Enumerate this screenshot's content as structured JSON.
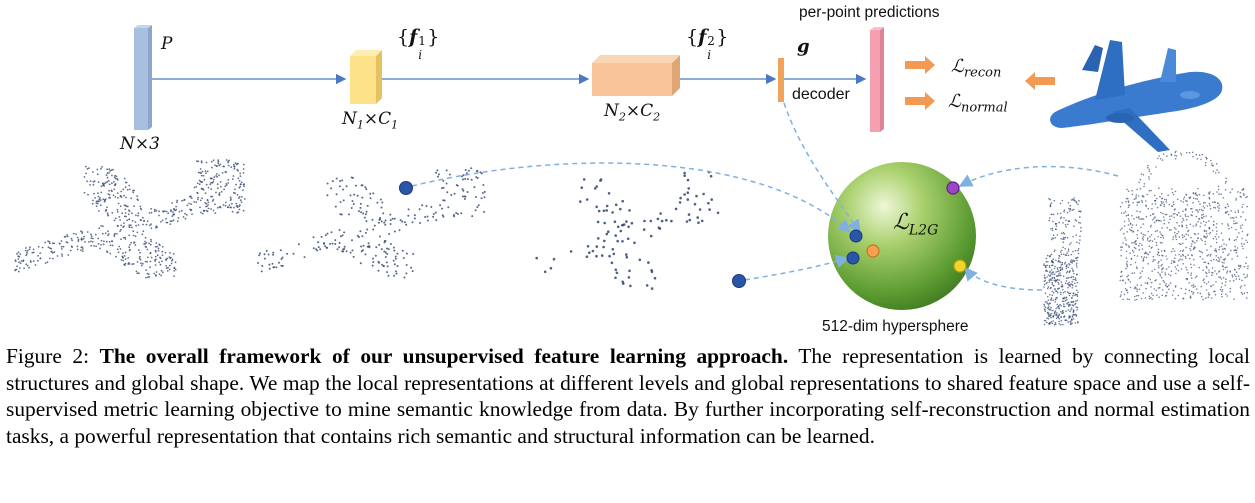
{
  "figure": {
    "labels": {
      "input_P": "P",
      "input_size": "N×3",
      "feature1": "{f",
      "feature1_sup": "1",
      "feature1_sub": "i",
      "feature1_close": "}",
      "size1_N": "N",
      "size1_Nsub": "1",
      "size1_x": "×",
      "size1_C": "C",
      "size1_Csub": "1",
      "feature2": "{f",
      "feature2_sup": "2",
      "feature2_sub": "i",
      "feature2_close": "}",
      "size2_N": "N",
      "size2_Nsub": "2",
      "size2_x": "×",
      "size2_C": "C",
      "size2_Csub": "2",
      "global_g": "g",
      "decoder": "decoder",
      "predictions": "per-point predictions",
      "loss_recon_L": "ℒ",
      "loss_recon_sub": "recon",
      "loss_normal_L": "ℒ",
      "loss_normal_sub": "normal",
      "loss_l2g_L": "ℒ",
      "loss_l2g_sub": "L2G",
      "hypersphere": "512-dim hypersphere"
    },
    "colors": {
      "input_bar": "#a9bfe0",
      "feature1_box": "#fde28a",
      "feature2_box": "#f9c49a",
      "g_bar": "#f0a35a",
      "prediction_bar": "#f5a0b0",
      "arrow_orange": "#f29a54",
      "flow_line": "#4a78c2",
      "dashed_line": "#7fb0e0",
      "sphere_light": "#cfe7a5",
      "sphere_dark": "#4a8a28",
      "airplane": "#2f6fc2",
      "dot_blue": "#2b55a8",
      "dot_orange": "#f6a14f",
      "dot_purple": "#9b45c8",
      "dot_yellow": "#f2d52a",
      "points": "#3a4f74"
    }
  },
  "caption": {
    "prefix": "Figure 2: ",
    "bold": "The overall framework of our unsupervised feature learning approach.",
    "text": " The representation is learned by connecting local structures and global shape. We map the local representations at different levels and global representations to shared feature space and use a self-supervised metric learning objective to mine semantic knowledge from data. By further incorporating self-reconstruction and normal estimation tasks, a powerful representation that contains rich semantic and structural information can be learned."
  }
}
